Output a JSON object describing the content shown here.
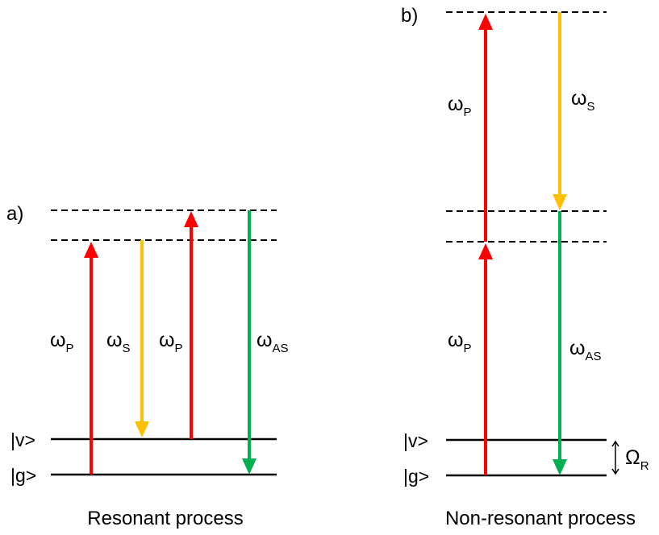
{
  "colors": {
    "pump": "#ff0000",
    "stokes": "#ffc000",
    "anti_stokes": "#00b050",
    "level": "#000000"
  },
  "panel_a": {
    "label": "a)",
    "caption": "Resonant process",
    "state_v": "|v>",
    "state_g": "|g>",
    "arrow1": {
      "symbol": "ω",
      "sub": "P"
    },
    "arrow2": {
      "symbol": "ω",
      "sub": "S"
    },
    "arrow3": {
      "symbol": "ω",
      "sub": "P"
    },
    "arrow4": {
      "symbol": "ω",
      "sub": "AS"
    }
  },
  "panel_b": {
    "label": "b)",
    "caption": "Non-resonant process",
    "state_v": "|v>",
    "state_g": "|g>",
    "pump_lower": {
      "symbol": "ω",
      "sub": "P"
    },
    "pump_upper": {
      "symbol": "ω",
      "sub": "P"
    },
    "stokes": {
      "symbol": "ω",
      "sub": "S"
    },
    "anti_stokes": {
      "symbol": "ω",
      "sub": "AS"
    },
    "spacing": {
      "symbol": "Ω",
      "sub": "R"
    }
  }
}
